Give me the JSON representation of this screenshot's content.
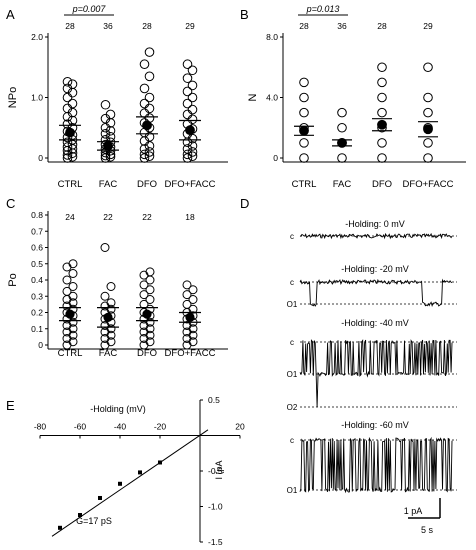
{
  "chart_data": [
    {
      "panel": "A",
      "type": "scatter",
      "ylabel": "NPo",
      "ylim": [
        0,
        2.0
      ],
      "yticks": [
        "0",
        "1.0",
        "2.0"
      ],
      "categories": [
        "CTRL",
        "FAC",
        "DFO",
        "DFO+FACC"
      ],
      "n": [
        "28",
        "36",
        "28",
        "29"
      ],
      "significance": "p=0.007",
      "means": [
        0.42,
        0.2,
        0.54,
        0.46
      ],
      "sem_low": [
        0.3,
        0.13,
        0.4,
        0.3
      ],
      "points": [
        [
          0,
          0.02,
          0.05,
          0.08,
          0.12,
          0.15,
          0.18,
          0.22,
          0.26,
          0.3,
          0.34,
          0.38,
          0.44,
          0.5,
          0.56,
          0.62,
          0.68,
          0.75,
          0.82,
          0.9,
          1.0,
          1.08,
          1.15,
          1.22,
          1.26
        ],
        [
          0,
          0.02,
          0.04,
          0.06,
          0.09,
          0.12,
          0.15,
          0.18,
          0.22,
          0.26,
          0.3,
          0.35,
          0.4,
          0.45,
          0.5,
          0.58,
          0.65,
          0.72,
          0.88
        ],
        [
          0,
          0.03,
          0.06,
          0.1,
          0.15,
          0.2,
          0.28,
          0.35,
          0.42,
          0.5,
          0.58,
          0.66,
          0.74,
          0.82,
          0.9,
          1.0,
          1.15,
          1.35,
          1.55,
          1.75
        ],
        [
          0,
          0.03,
          0.06,
          0.1,
          0.15,
          0.2,
          0.26,
          0.32,
          0.4,
          0.48,
          0.56,
          0.64,
          0.72,
          0.8,
          0.9,
          1.0,
          1.1,
          1.2,
          1.32,
          1.45,
          1.55
        ]
      ]
    },
    {
      "panel": "B",
      "type": "scatter",
      "ylabel": "N",
      "ylim": [
        0,
        8.0
      ],
      "yticks": [
        "0",
        "4.0",
        "8.0"
      ],
      "categories": [
        "CTRL",
        "FAC",
        "DFO",
        "DFO+FACC"
      ],
      "n": [
        "28",
        "36",
        "28",
        "29"
      ],
      "significance": "p=0.013",
      "means": [
        1.8,
        1.0,
        2.2,
        1.9
      ],
      "sem_low": [
        1.5,
        0.8,
        1.8,
        1.4
      ],
      "points": [
        [
          0,
          1,
          2,
          3,
          4,
          5
        ],
        [
          0,
          1,
          2,
          3
        ],
        [
          0,
          1,
          2,
          3,
          4,
          5,
          6
        ],
        [
          0,
          1,
          2,
          3,
          4,
          6
        ]
      ]
    },
    {
      "panel": "C",
      "type": "scatter",
      "ylabel": "Po",
      "ylim": [
        0,
        0.8
      ],
      "yticks": [
        "0",
        "0.1",
        "0.2",
        "0.3",
        "0.4",
        "0.5",
        "0.6",
        "0.7",
        "0.8"
      ],
      "categories": [
        "CTRL",
        "FAC",
        "DFO",
        "DFO+FACC"
      ],
      "n": [
        "24",
        "22",
        "22",
        "18"
      ],
      "means": [
        0.19,
        0.17,
        0.19,
        0.17
      ],
      "sem_low": [
        0.15,
        0.11,
        0.15,
        0.14
      ],
      "points": [
        [
          0,
          0.02,
          0.04,
          0.06,
          0.08,
          0.1,
          0.12,
          0.14,
          0.16,
          0.18,
          0.2,
          0.22,
          0.24,
          0.26,
          0.28,
          0.3,
          0.33,
          0.36,
          0.4,
          0.44,
          0.48,
          0.5
        ],
        [
          0,
          0.02,
          0.04,
          0.06,
          0.08,
          0.1,
          0.12,
          0.14,
          0.16,
          0.18,
          0.2,
          0.22,
          0.24,
          0.26,
          0.3,
          0.36,
          0.6
        ],
        [
          0,
          0.02,
          0.04,
          0.06,
          0.08,
          0.1,
          0.12,
          0.14,
          0.16,
          0.18,
          0.2,
          0.22,
          0.25,
          0.28,
          0.31,
          0.34,
          0.37,
          0.4,
          0.43,
          0.45
        ],
        [
          0,
          0.02,
          0.04,
          0.06,
          0.08,
          0.1,
          0.12,
          0.14,
          0.16,
          0.18,
          0.2,
          0.22,
          0.25,
          0.28,
          0.31,
          0.34,
          0.37
        ]
      ]
    },
    {
      "panel": "E",
      "type": "line",
      "xlabel": "-Holding (mV)",
      "ylabel": "I (pA",
      "xlim": [
        -80,
        20
      ],
      "ylim": [
        -1.5,
        0.5
      ],
      "xticks": [
        "-80",
        "-60",
        "-40",
        "-20",
        "20"
      ],
      "yticks": [
        "0.5",
        "-0.5",
        "-1.0",
        "-1.5"
      ],
      "x": [
        -70,
        -60,
        -50,
        -40,
        -30,
        -20
      ],
      "y": [
        -1.3,
        -1.12,
        -0.88,
        -0.68,
        -0.52,
        -0.38
      ],
      "annotation": "G=17 pS"
    }
  ],
  "panel_d": {
    "traces": [
      {
        "label": "-Holding: 0 mV",
        "levels": [
          "c"
        ]
      },
      {
        "label": "-Holding: -20 mV",
        "levels": [
          "c",
          "O1"
        ]
      },
      {
        "label": "-Holding: -40 mV",
        "levels": [
          "c",
          "O1",
          "O2"
        ]
      },
      {
        "label": "-Holding: -60 mV",
        "levels": [
          "c",
          "O1"
        ]
      }
    ],
    "scalebar": {
      "current": "1 pA",
      "time": "5 s"
    }
  },
  "panel_labels": [
    "A",
    "B",
    "C",
    "D",
    "E"
  ]
}
